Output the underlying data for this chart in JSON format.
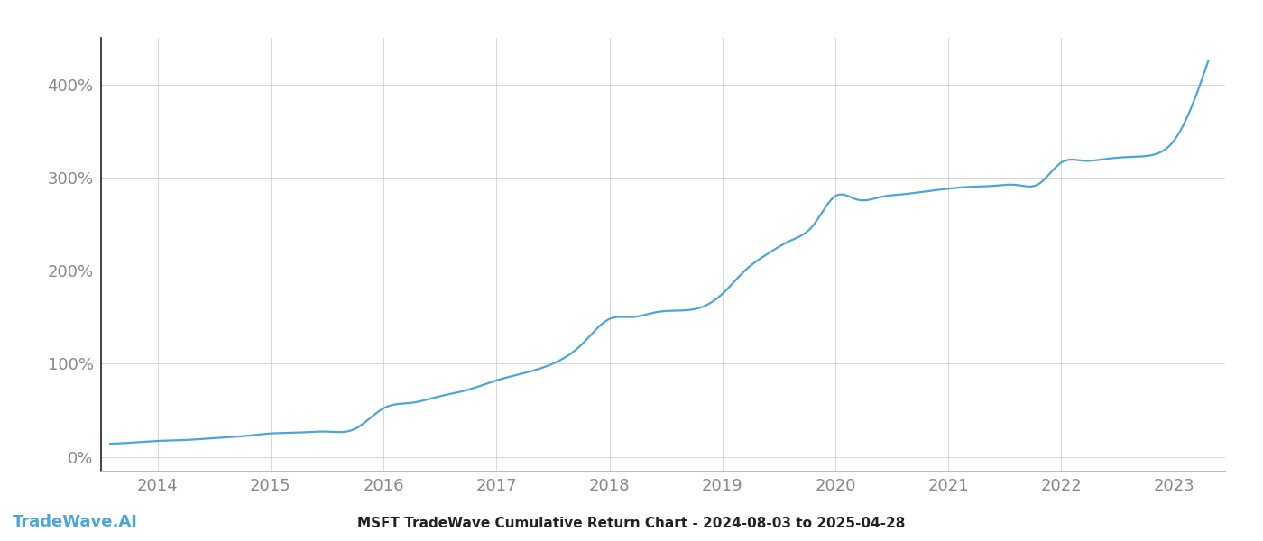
{
  "title": "MSFT TradeWave Cumulative Return Chart - 2024-08-03 to 2025-04-28",
  "watermark": "TradeWave.AI",
  "line_color": "#4da6d8",
  "background_color": "#ffffff",
  "grid_color": "#d0d0d0",
  "x_years": [
    2014,
    2015,
    2016,
    2017,
    2018,
    2019,
    2020,
    2021,
    2022,
    2023
  ],
  "y_ticks": [
    0,
    100,
    200,
    300,
    400
  ],
  "x_data": [
    2013.58,
    2013.75,
    2014.0,
    2014.25,
    2014.5,
    2014.75,
    2015.0,
    2015.25,
    2015.5,
    2015.75,
    2016.0,
    2016.25,
    2016.5,
    2016.75,
    2017.0,
    2017.25,
    2017.5,
    2017.75,
    2018.0,
    2018.2,
    2018.4,
    2018.6,
    2018.8,
    2019.0,
    2019.2,
    2019.4,
    2019.6,
    2019.8,
    2020.0,
    2020.2,
    2020.4,
    2020.6,
    2020.8,
    2021.0,
    2021.2,
    2021.4,
    2021.6,
    2021.8,
    2022.0,
    2022.2,
    2022.4,
    2022.6,
    2022.8,
    2023.0,
    2023.15,
    2023.3
  ],
  "y_data": [
    14,
    15,
    17,
    18,
    20,
    22,
    25,
    26,
    27,
    30,
    52,
    58,
    65,
    72,
    82,
    90,
    100,
    120,
    148,
    150,
    155,
    157,
    160,
    175,
    200,
    218,
    232,
    248,
    280,
    276,
    279,
    282,
    285,
    288,
    290,
    291,
    292,
    293,
    316,
    318,
    320,
    322,
    324,
    340,
    375,
    425
  ],
  "xlim": [
    2013.5,
    2023.45
  ],
  "ylim": [
    -15,
    450
  ],
  "title_fontsize": 11,
  "tick_fontsize": 13,
  "watermark_fontsize": 13,
  "axis_label_color": "#888888",
  "title_color": "#222222",
  "watermark_color": "#4da6d8",
  "left_spine_color": "#222222",
  "bottom_spine_color": "#bbbbbb"
}
